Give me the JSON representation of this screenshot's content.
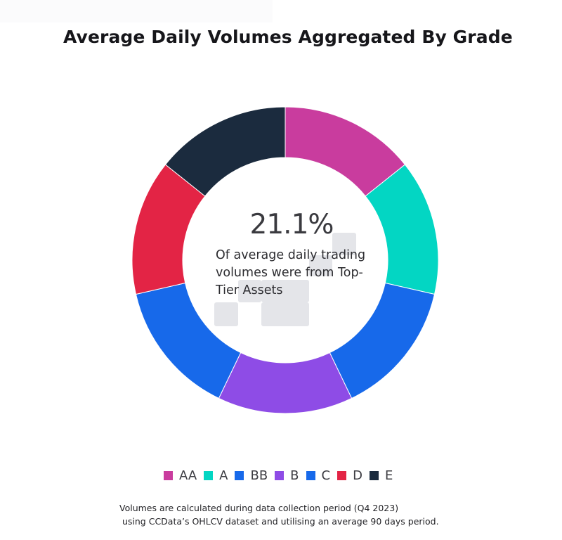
{
  "chart_data": {
    "type": "pie",
    "style": "donut",
    "title": "Average Daily Volumes Aggregated By Grade",
    "categories": [
      "AA",
      "A",
      "BB",
      "B",
      "C",
      "D",
      "E"
    ],
    "values": [
      14.2857,
      14.2857,
      14.2857,
      14.2857,
      14.2857,
      14.2857,
      14.2857
    ],
    "colors": [
      "#c93c9e",
      "#03d6c3",
      "#1769ea",
      "#8e4ce6",
      "#1769ea",
      "#e32445",
      "#1b2b3e"
    ],
    "legend_position": "bottom",
    "center_value": "21.1%",
    "center_text": "Of average daily trading volumes were from Top-Tier Assets"
  },
  "footnote": "Volumes are calculated during data collection period (Q4 2023)\n using CCData’s OHLCV dataset and utilising an average 90 days period.",
  "watermark_icon": "ccdata-logo-icon"
}
